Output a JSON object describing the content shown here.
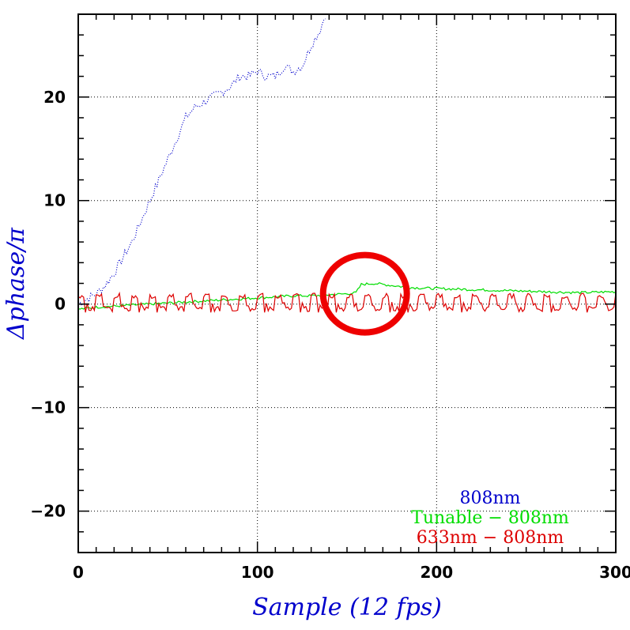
{
  "chart_data": {
    "type": "line",
    "xlabel": "Sample (12 fps)",
    "ylabel": "Δphase/π",
    "xlim": [
      0,
      300
    ],
    "ylim": [
      -24,
      28
    ],
    "x_ticks": [
      0,
      100,
      200,
      300
    ],
    "y_ticks": [
      -20,
      -10,
      0,
      10,
      20
    ],
    "x_tick_labels": [
      "0",
      "100",
      "200",
      "300"
    ],
    "y_tick_labels": [
      "−20",
      "−10",
      "0",
      "10",
      "20"
    ],
    "grid": true,
    "legend_position": "bottom-right",
    "series": [
      {
        "name": "808nm",
        "color": "#0000cc",
        "style": "dotted",
        "x": [
          0,
          5,
          10,
          15,
          20,
          25,
          30,
          35,
          40,
          45,
          50,
          55,
          60,
          65,
          70,
          75,
          80,
          85,
          90,
          95,
          100,
          105,
          110,
          115,
          120,
          125,
          130,
          135,
          138
        ],
        "y": [
          0,
          0.5,
          1.0,
          1.8,
          3.0,
          4.5,
          6.0,
          8.0,
          10.0,
          12.0,
          14.0,
          16.0,
          18.0,
          19.0,
          19.5,
          20.0,
          20.5,
          21.0,
          22.0,
          22.0,
          22.5,
          22.0,
          22.0,
          23.0,
          22.5,
          23.0,
          25.0,
          26.5,
          28
        ]
      },
      {
        "name": "Tunable − 808nm",
        "color": "#00dd00",
        "style": "solid",
        "x": [
          0,
          10,
          20,
          30,
          40,
          50,
          60,
          70,
          80,
          90,
          100,
          110,
          120,
          130,
          140,
          150,
          155,
          158,
          165,
          175,
          185,
          200,
          220,
          240,
          260,
          280,
          300
        ],
        "y": [
          -0.5,
          -0.3,
          -0.2,
          -0.1,
          0.0,
          0.1,
          0.2,
          0.3,
          0.4,
          0.5,
          0.6,
          0.7,
          0.8,
          0.8,
          0.9,
          1.0,
          1.1,
          1.9,
          2.0,
          1.8,
          1.6,
          1.5,
          1.4,
          1.3,
          1.2,
          1.1,
          1.2
        ]
      },
      {
        "name": "633nm − 808nm",
        "color": "#dd0000",
        "style": "solid",
        "base_level": 0.0,
        "high_level": 0.8,
        "low_level": -0.8,
        "period_samples": 10
      }
    ]
  },
  "legend": {
    "entries": [
      {
        "label": "808nm",
        "color": "#0000cc"
      },
      {
        "label": "Tunable − 808nm",
        "color": "#00dd00"
      },
      {
        "label": "633nm − 808nm",
        "color": "#dd0000"
      }
    ]
  },
  "annotation": {
    "shape": "circle",
    "color": "#ee0000",
    "center_x": 160,
    "center_y": 1
  }
}
